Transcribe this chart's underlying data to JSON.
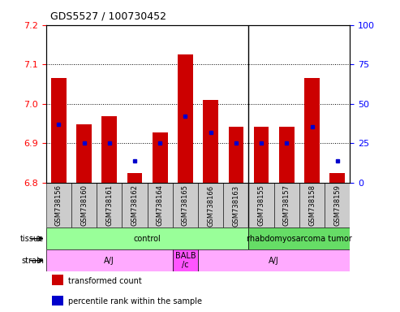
{
  "title": "GDS5527 / 100730452",
  "samples": [
    "GSM738156",
    "GSM738160",
    "GSM738161",
    "GSM738162",
    "GSM738164",
    "GSM738165",
    "GSM738166",
    "GSM738163",
    "GSM738155",
    "GSM738157",
    "GSM738158",
    "GSM738159"
  ],
  "bar_tops": [
    7.065,
    6.948,
    6.968,
    6.825,
    6.928,
    7.125,
    7.01,
    6.942,
    6.942,
    6.942,
    7.065,
    6.825
  ],
  "bar_base": 6.8,
  "blue_markers": [
    6.948,
    6.9,
    6.9,
    6.855,
    6.9,
    6.968,
    6.928,
    6.9,
    6.9,
    6.9,
    6.942,
    6.855
  ],
  "ylim_left": [
    6.8,
    7.2
  ],
  "ylim_right": [
    0,
    100
  ],
  "yticks_left": [
    6.8,
    6.9,
    7.0,
    7.1,
    7.2
  ],
  "yticks_right": [
    0,
    25,
    50,
    75,
    100
  ],
  "bar_color": "#cc0000",
  "blue_color": "#0000cc",
  "tissue_labels": [
    "control",
    "rhabdomyosarcoma tumor"
  ],
  "tissue_ranges": [
    [
      0,
      8
    ],
    [
      8,
      12
    ]
  ],
  "tissue_color_control": "#99ff99",
  "tissue_color_tumor": "#66dd66",
  "strain_labels": [
    "A/J",
    "BALB\n/c",
    "A/J"
  ],
  "strain_ranges": [
    [
      0,
      5
    ],
    [
      5,
      6
    ],
    [
      6,
      12
    ]
  ],
  "strain_color_normal": "#ffaaff",
  "strain_color_balb": "#ff55ff",
  "legend_items": [
    "transformed count",
    "percentile rank within the sample"
  ],
  "legend_colors": [
    "#cc0000",
    "#0000cc"
  ],
  "grid_yticks": [
    6.9,
    7.0,
    7.1
  ],
  "bar_width": 0.6,
  "background_color": "#ffffff",
  "label_bg": "#cccccc",
  "group_divider": 7.5
}
